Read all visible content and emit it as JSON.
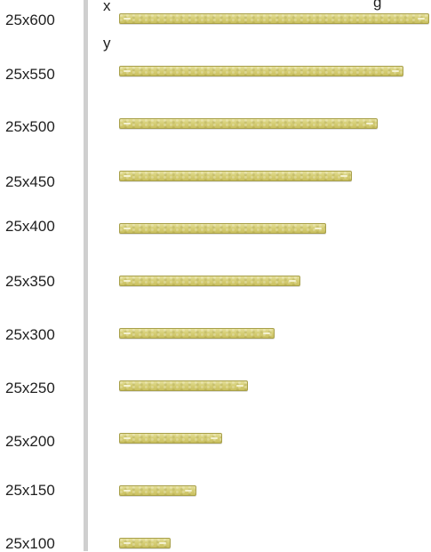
{
  "axis": {
    "x_label": "x",
    "y_label": "y",
    "clipped_top_text": "g"
  },
  "rows": [
    {
      "label": "25x600",
      "value": 600
    },
    {
      "label": "25x550",
      "value": 550
    },
    {
      "label": "25x500",
      "value": 500
    },
    {
      "label": "25x450",
      "value": 450
    },
    {
      "label": "25x400",
      "value": 400
    },
    {
      "label": "25x350",
      "value": 350
    },
    {
      "label": "25x300",
      "value": 300
    },
    {
      "label": "25x250",
      "value": 250
    },
    {
      "label": "25x200",
      "value": 200
    },
    {
      "label": "25x150",
      "value": 150
    },
    {
      "label": "25x100",
      "value": 100
    }
  ],
  "colors": {
    "strip_fill": "#d6cf78",
    "strip_border": "#a8a04a",
    "divider": "#cfcfcf",
    "text": "#1f1f1f"
  }
}
